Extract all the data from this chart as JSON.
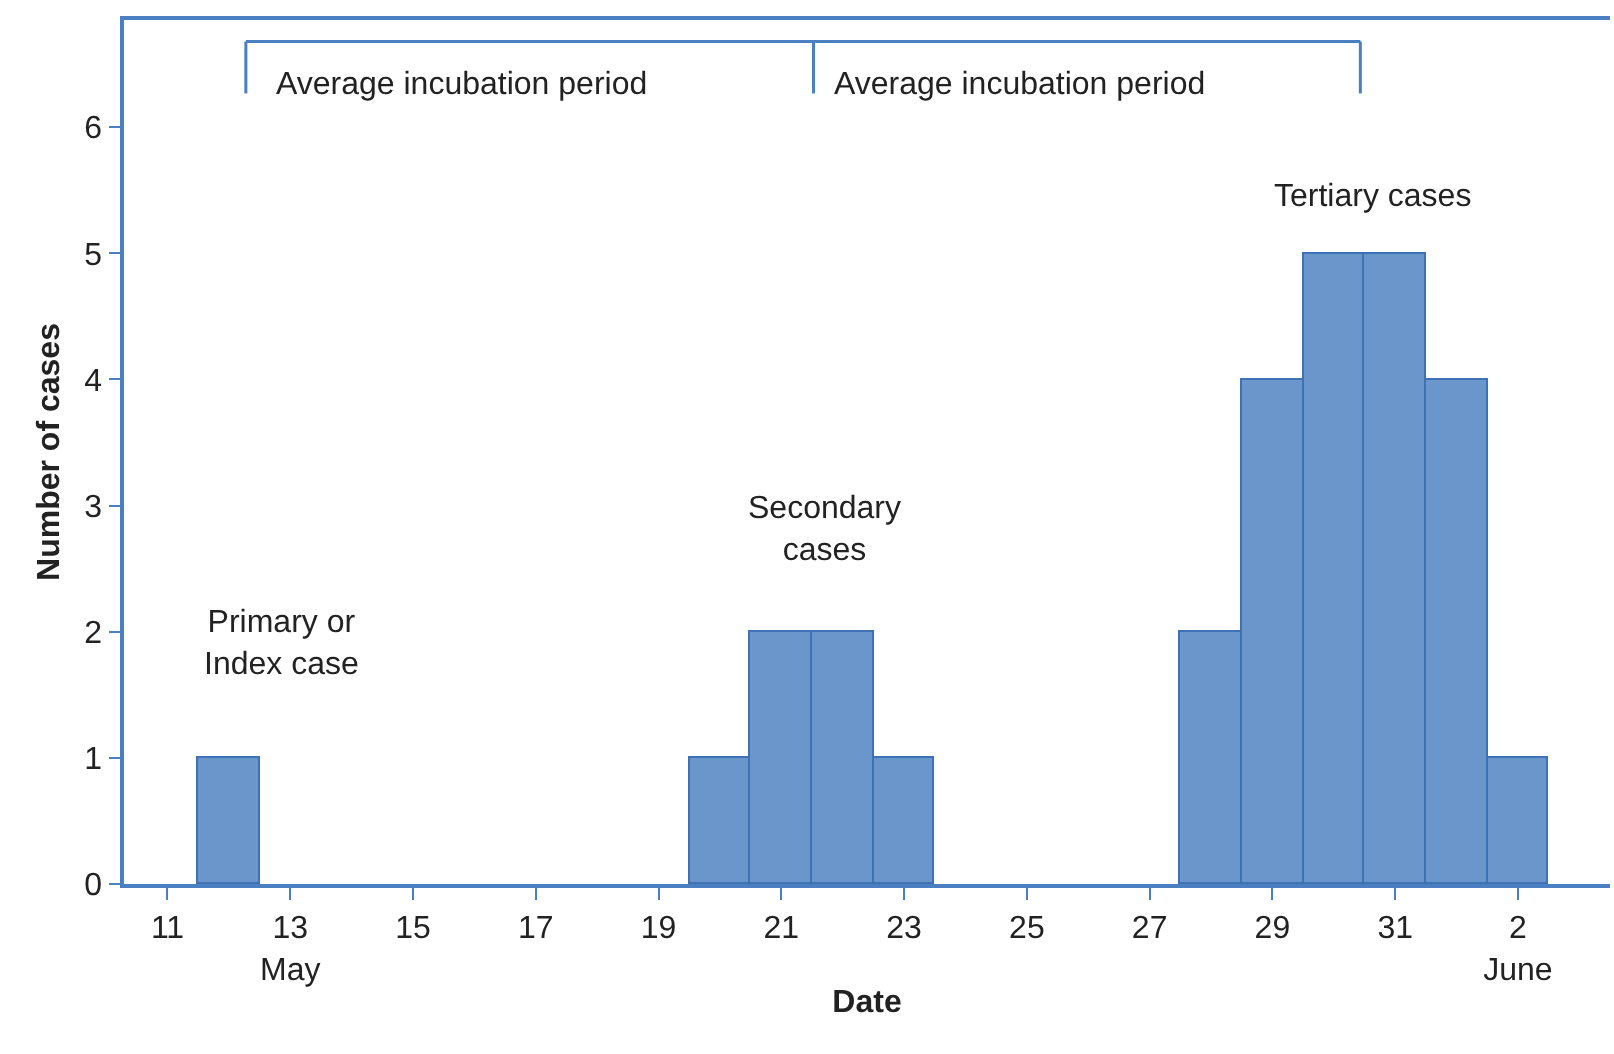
{
  "chart_data": {
    "type": "bar",
    "xlabel": "Date",
    "ylabel": "Number of cases",
    "x": [
      "--05-12",
      "--05-20",
      "--05-21",
      "--05-22",
      "--05-23",
      "--05-28",
      "--05-29",
      "--05-30",
      "--05-31",
      "--06-01",
      "--06-02"
    ],
    "values": [
      1,
      1,
      2,
      2,
      1,
      2,
      4,
      5,
      5,
      4,
      1
    ],
    "color": "#6b96cc",
    "xlim": [
      "--05-10T07:00",
      "--06-03T12:00"
    ],
    "xticks": [
      {
        "value": "--05-11",
        "label": "11"
      },
      {
        "value": "--05-13",
        "label": "13\nMay"
      },
      {
        "value": "--05-15",
        "label": "15"
      },
      {
        "value": "--05-17",
        "label": "17"
      },
      {
        "value": "--05-19",
        "label": "19"
      },
      {
        "value": "--05-21",
        "label": "21"
      },
      {
        "value": "--05-23",
        "label": "23"
      },
      {
        "value": "--05-25",
        "label": "25"
      },
      {
        "value": "--05-27",
        "label": "27"
      },
      {
        "value": "--05-29",
        "label": "29"
      },
      {
        "value": "--05-31",
        "label": "31"
      },
      {
        "value": "--06-02",
        "label": "2\nJune"
      }
    ],
    "ylim": [
      0,
      6.85
    ],
    "yticks": [
      0,
      1,
      2,
      3,
      4,
      5,
      6
    ],
    "annotations": [
      "Average incubation period",
      "Average incubation period",
      "Primary or\nIndex case",
      "Secondary\ncases",
      "Tertiary cases"
    ]
  }
}
